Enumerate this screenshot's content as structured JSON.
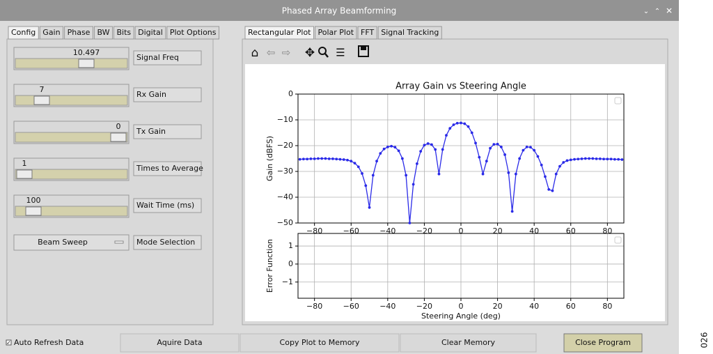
{
  "window": {
    "title": "Phased Array Beamforming"
  },
  "left_tabs": [
    "Config",
    "Gain",
    "Phase",
    "BW",
    "Bits",
    "Digital",
    "Plot Options"
  ],
  "controls": [
    {
      "value": 10.497,
      "label": "Signal Freq"
    },
    {
      "value": 7,
      "label": "Rx Gain"
    },
    {
      "value": 0,
      "label": "Tx Gain"
    },
    {
      "value": 1,
      "label": "Times to Average"
    },
    {
      "value": 100,
      "label": "Wait Time (ms)"
    }
  ],
  "mode": {
    "value": "Beam Sweep",
    "label": "Mode Selection"
  },
  "right_tabs": [
    "Rectangular Plot",
    "Polar Plot",
    "FFT",
    "Signal Tracking"
  ],
  "chart_data": [
    {
      "type": "line",
      "title": "Array Gain vs Steering Angle",
      "ylabel": "Gain (dBFS)",
      "color": "#2a2ae8",
      "x": [
        -88,
        -86,
        -84,
        -82,
        -80,
        -78,
        -76,
        -74,
        -72,
        -70,
        -68,
        -66,
        -64,
        -62,
        -60,
        -58,
        -56,
        -54,
        -52,
        -50,
        -48,
        -46,
        -44,
        -42,
        -40,
        -38,
        -36,
        -34,
        -32,
        -30,
        -28,
        -26,
        -24,
        -22,
        -20,
        -18,
        -16,
        -14,
        -12,
        -10,
        -8,
        -6,
        -4,
        -2,
        0,
        2,
        4,
        6,
        8,
        10,
        12,
        14,
        16,
        18,
        20,
        22,
        24,
        26,
        28,
        30,
        32,
        34,
        36,
        38,
        40,
        42,
        44,
        46,
        48,
        50,
        52,
        54,
        56,
        58,
        60,
        62,
        64,
        66,
        68,
        70,
        72,
        74,
        76,
        78,
        80,
        82,
        84,
        86,
        88
      ],
      "values": [
        -25.3,
        -25.2,
        -25.2,
        -25.1,
        -25.1,
        -25,
        -25,
        -25,
        -25.1,
        -25.1,
        -25.2,
        -25.3,
        -25.4,
        -25.6,
        -26,
        -26.8,
        -28.2,
        -30.8,
        -35.5,
        -44,
        -31.5,
        -26,
        -23,
        -21.3,
        -20.5,
        -20.2,
        -20.6,
        -22,
        -25,
        -31.5,
        -50,
        -35,
        -27,
        -22.2,
        -19.8,
        -19.2,
        -19.6,
        -21.5,
        -31,
        -21.5,
        -16,
        -13.3,
        -11.9,
        -11.3,
        -11.2,
        -11.5,
        -12.6,
        -15,
        -19,
        -24.5,
        -31,
        -26,
        -21,
        -19.5,
        -19.4,
        -20.5,
        -23.5,
        -30.5,
        -45.5,
        -31,
        -25,
        -21.8,
        -20.5,
        -20.6,
        -21.8,
        -24.2,
        -27.5,
        -32,
        -37,
        -37.5,
        -31,
        -28,
        -26.5,
        -25.8,
        -25.5,
        -25.3,
        -25.2,
        -25.1,
        -25,
        -25,
        -25,
        -25.1,
        -25.1,
        -25.2,
        -25.2,
        -25.2,
        -25.3,
        -25.3,
        -25.4
      ],
      "xlim": [
        -89,
        89
      ],
      "ylim": [
        -50,
        0
      ],
      "xticks": [
        {
          "value": -80,
          "label": "−80"
        },
        {
          "value": -60,
          "label": "−60"
        },
        {
          "value": -40,
          "label": "−40"
        },
        {
          "value": -20,
          "label": "−20"
        },
        0,
        20,
        40,
        60,
        80
      ],
      "yticks": [
        0,
        {
          "value": -10,
          "label": "−10"
        },
        {
          "value": -20,
          "label": "−20"
        },
        {
          "value": -30,
          "label": "−30"
        },
        {
          "value": -40,
          "label": "−40"
        },
        {
          "value": -50,
          "label": "−50"
        }
      ],
      "grid": true
    },
    {
      "type": "line",
      "ylabel": "Error Function",
      "xlabel": "Steering Angle (deg)",
      "xlim": [
        -89,
        89
      ],
      "ylim": [
        -1.9,
        1.7
      ],
      "xticks": [
        {
          "value": -80,
          "label": "−80"
        },
        {
          "value": -60,
          "label": "−60"
        },
        {
          "value": -40,
          "label": "−40"
        },
        {
          "value": -20,
          "label": "−20"
        },
        0,
        20,
        40,
        60,
        80
      ],
      "yticks": [
        1,
        0,
        {
          "value": -1,
          "label": "−1"
        }
      ],
      "grid": true
    }
  ],
  "bottom": {
    "checkbox": "Auto Refresh Data",
    "buttons": [
      "Aquire Data",
      "Copy Plot to Memory",
      "Clear Memory",
      "Close Program"
    ]
  },
  "figure_number": "026"
}
